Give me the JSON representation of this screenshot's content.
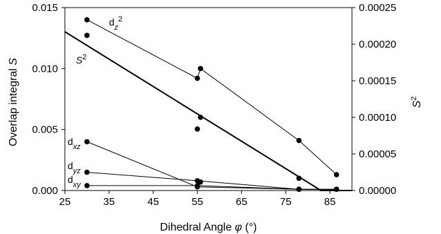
{
  "chart_data": {
    "type": "scatter",
    "xlabel_prefix": "Dihedral Angle ",
    "xlabel_symbol": "φ",
    "xlabel_unit": " (°)",
    "ylabel_prefix": "Overlap integral ",
    "ylabel_symbol": "S",
    "y2label_base": "S",
    "y2label_exp": "2",
    "xlim": [
      25,
      90
    ],
    "ylim": [
      0,
      0.015
    ],
    "y2lim": [
      0,
      0.00025
    ],
    "xticks": [
      "25",
      "35",
      "45",
      "55",
      "65",
      "75",
      "85"
    ],
    "yticks": [
      "0.000",
      "0.005",
      "0.010",
      "0.015"
    ],
    "y2ticks": [
      "0.00000",
      "0.00005",
      "0.00010",
      "0.00015",
      "0.00020",
      "0.00025"
    ],
    "series": [
      {
        "label_base": "d",
        "label_sub": "z",
        "label_sup": "2",
        "points": [
          [
            30,
            0.014
          ],
          [
            55,
            0.0092
          ],
          [
            55.7,
            0.01
          ],
          [
            78,
            0.0041
          ],
          [
            86.5,
            0.0013
          ]
        ],
        "line": [
          [
            30,
            0.014
          ],
          [
            55,
            0.0092
          ],
          [
            55.7,
            0.01
          ],
          [
            78,
            0.0041
          ],
          [
            86.5,
            0.0013
          ]
        ]
      },
      {
        "label_base": "S",
        "label_sup": "2",
        "axis": "right",
        "points": [
          [
            30,
            0.000212
          ],
          [
            55,
            8.4e-05
          ],
          [
            55.7,
            0.0001
          ],
          [
            78,
            1.67e-05
          ],
          [
            86.5,
            1.7e-06
          ]
        ],
        "line": [
          [
            25,
            0.000217
          ],
          [
            83,
            0
          ],
          [
            90,
            0
          ]
        ]
      },
      {
        "label_base": "d",
        "label_sub": "xz",
        "points": [
          [
            30,
            0.004
          ],
          [
            55,
            0.0003
          ],
          [
            78,
            0.0001
          ]
        ],
        "line": [
          [
            30,
            0.004
          ],
          [
            55,
            0.0003
          ],
          [
            78,
            0.0001
          ],
          [
            86.5,
            0.0001
          ]
        ]
      },
      {
        "label_base": "d",
        "label_sub": "yz",
        "points": [
          [
            30,
            0.0015
          ],
          [
            55,
            0.0008
          ],
          [
            55.7,
            0.0007
          ],
          [
            78,
            0.0001
          ],
          [
            86.5,
            0.0001
          ]
        ],
        "line": [
          [
            30,
            0.0015
          ],
          [
            55,
            0.0008
          ],
          [
            78,
            0.0001
          ],
          [
            86.5,
            0.0001
          ]
        ]
      },
      {
        "label_base": "d",
        "label_sub": "xy",
        "points": [
          [
            30,
            0.0004
          ],
          [
            55,
            0.0004
          ],
          [
            78,
            0.0001
          ],
          [
            86.5,
            0.0001
          ]
        ],
        "line": [
          [
            30,
            0.0004
          ],
          [
            55,
            0.0004
          ],
          [
            78,
            0.0001
          ],
          [
            86.5,
            0.0001
          ]
        ]
      }
    ]
  }
}
